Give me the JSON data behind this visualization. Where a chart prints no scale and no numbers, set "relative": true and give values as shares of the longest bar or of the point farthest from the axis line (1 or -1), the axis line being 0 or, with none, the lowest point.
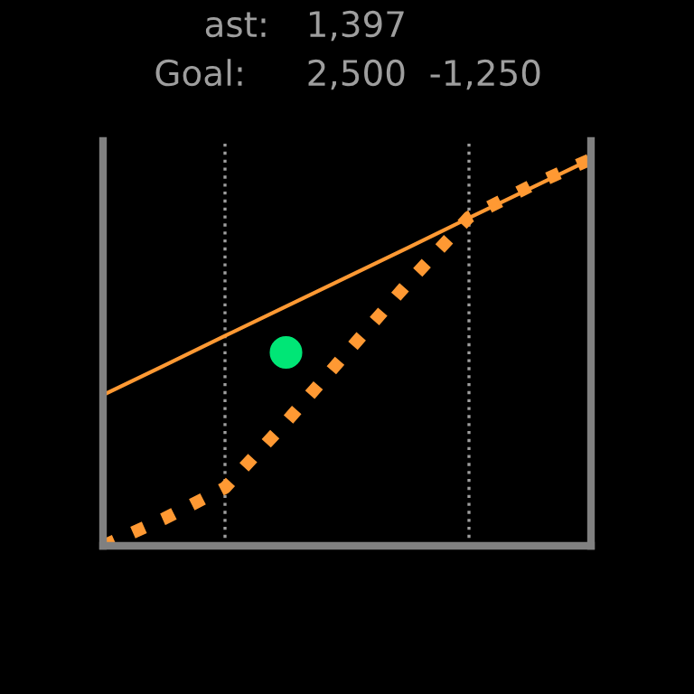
{
  "chart_data": {
    "type": "line",
    "relative": true,
    "categories": [
      null,
      null,
      null,
      null,
      null,
      null,
      null,
      null,
      null
    ],
    "annotations": [
      "ast:",
      "1,397",
      "Goal:",
      "2,500",
      "-1,250"
    ],
    "series": [
      {
        "color": "#ff9933",
        "line_style": "dotted",
        "values": [
          0,
          0.07,
          0.15,
          0.32,
          0.5,
          0.68,
          0.85,
          0.93,
          1
        ]
      },
      {
        "color": "#ff9933",
        "line_style": "solid",
        "values": [
          0.39,
          0.466,
          0.543,
          0.619,
          0.695,
          0.771,
          0.848,
          0.924,
          1
        ]
      },
      {
        "color": "#00e676",
        "marker": "circle",
        "values": [
          null,
          null,
          null,
          0.5,
          null,
          null,
          null,
          null,
          null
        ]
      }
    ]
  }
}
